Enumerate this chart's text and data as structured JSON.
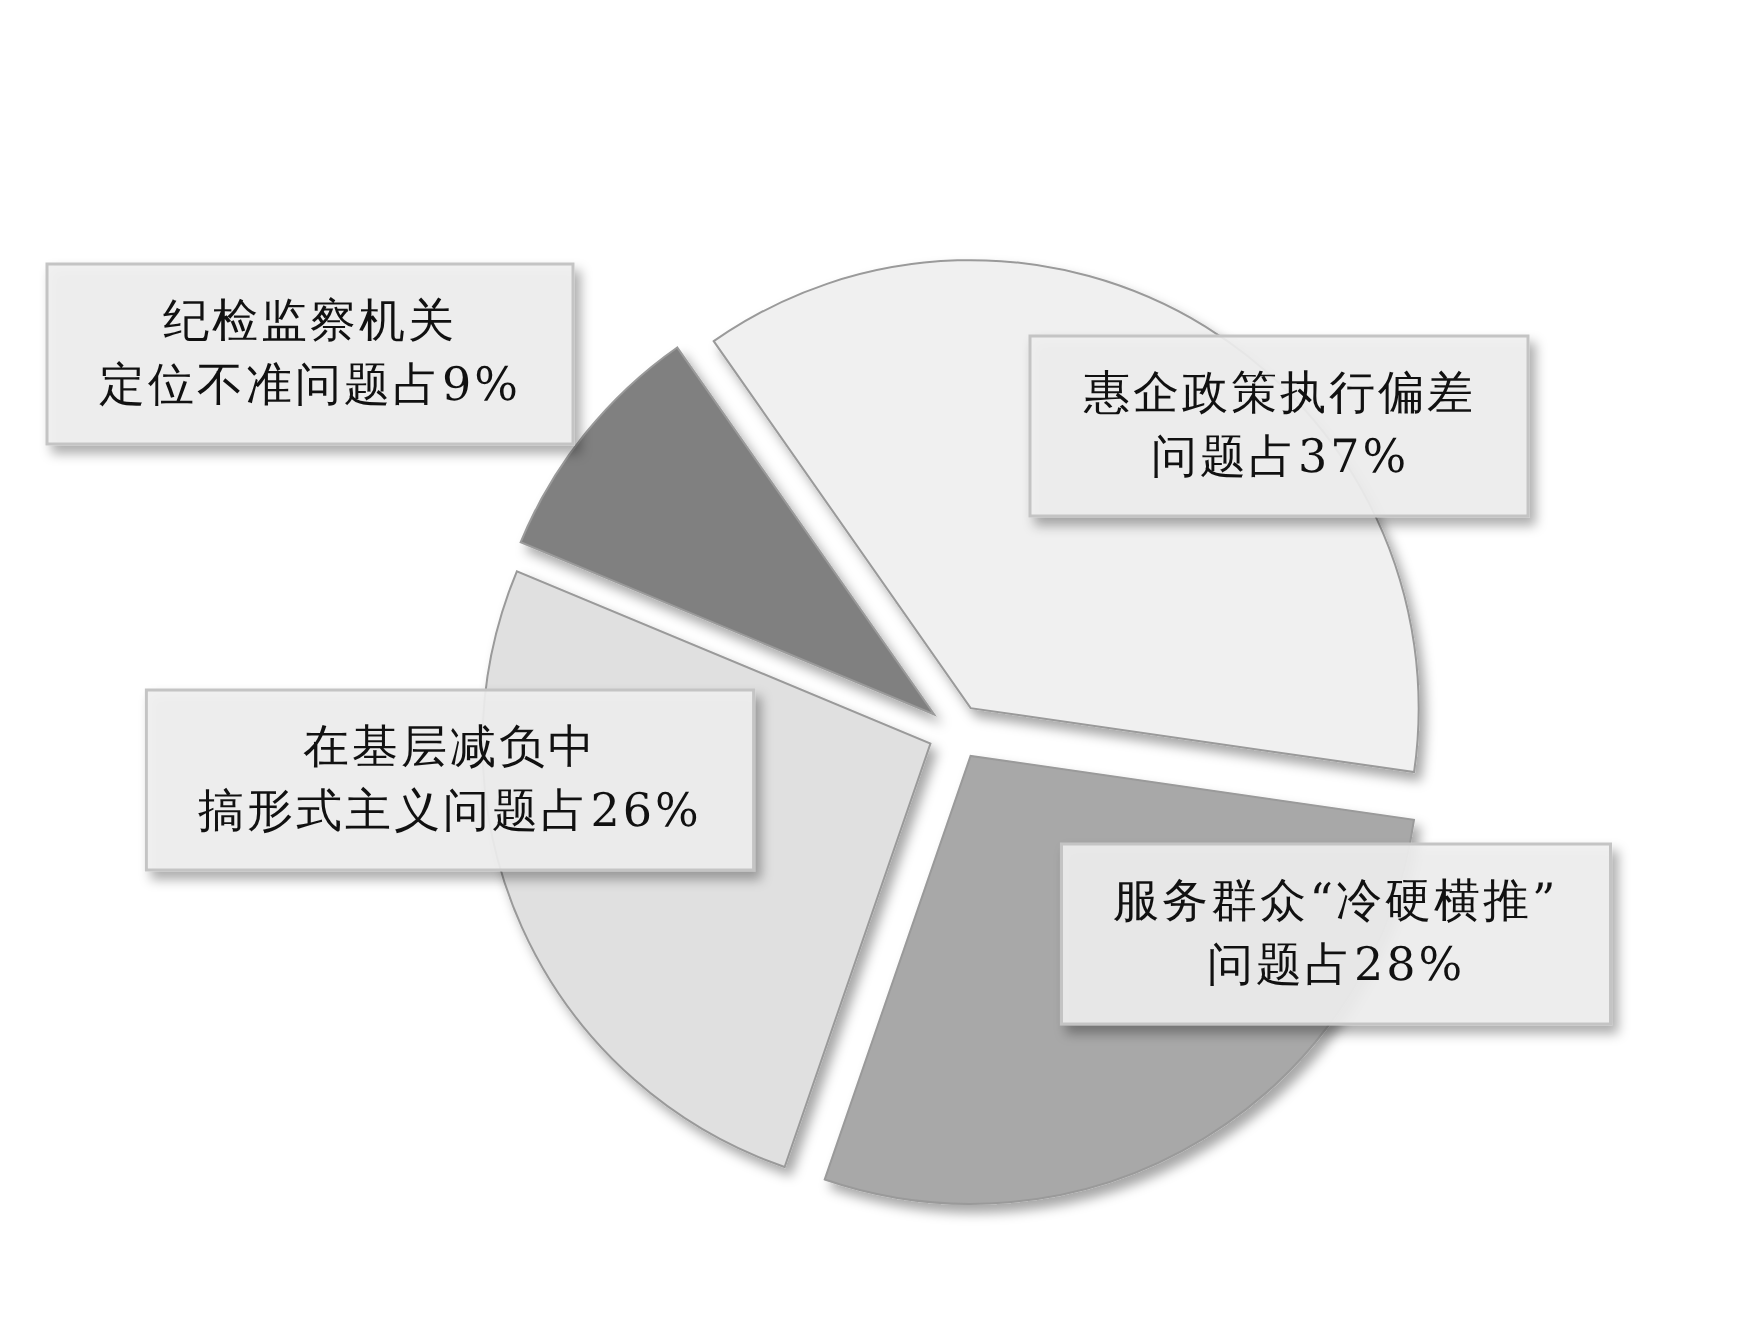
{
  "chart_data": {
    "type": "pie",
    "categories": [
      "惠企政策执行偏差问题占37%",
      "服务群众“冷硬横推”问题占28%",
      "在基层减负中搞形式主义问题占26%",
      "纪检监察机关定位不准问题占9%"
    ],
    "values": [
      37,
      28,
      26,
      9
    ],
    "colors": [
      "#f0f0f0",
      "#a8a8a8",
      "#e0e0e0",
      "#808080"
    ]
  }
}
